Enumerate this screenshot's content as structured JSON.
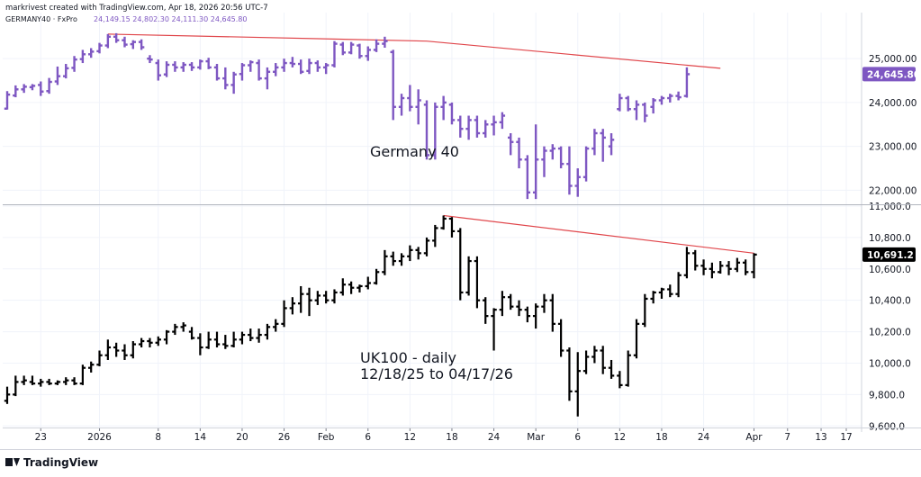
{
  "header": {
    "created_by": "markrivest created with TradingView.com, Apr 18, 2026 20:56 UTC-7",
    "symbol": "GERMANY40 · FxPro",
    "ohlc": "24,149.15  24,802.30  24,111.30  24,645.80"
  },
  "footer": {
    "logo_text": "TradingView"
  },
  "colors": {
    "germany": "#7e57c2",
    "uk": "#000000",
    "trendline": "#e0454a",
    "grid": "#f0f3fa",
    "axis_line": "#d1d4dc"
  },
  "chart_data": [
    {
      "type": "ohlc-bar",
      "title": "",
      "annotation": "Germany 40",
      "last_price_label": "24,645.80",
      "y_tick_labels": [
        "25,000.00",
        "24,000.00",
        "23,000.00",
        "22,000.00"
      ],
      "y_ticks": [
        25000,
        24000,
        23000,
        22000
      ],
      "ylim": [
        21700,
        26050
      ],
      "bars": [
        [
          23860,
          24260,
          23840,
          24180
        ],
        [
          24160,
          24390,
          24120,
          24300
        ],
        [
          24300,
          24420,
          24220,
          24360
        ],
        [
          24350,
          24420,
          24280,
          24380
        ],
        [
          24400,
          24480,
          24150,
          24250
        ],
        [
          24260,
          24560,
          24200,
          24470
        ],
        [
          24480,
          24820,
          24400,
          24600
        ],
        [
          24600,
          24880,
          24550,
          24780
        ],
        [
          24790,
          25060,
          24700,
          24980
        ],
        [
          24990,
          25200,
          24900,
          25100
        ],
        [
          25100,
          25240,
          25020,
          25160
        ],
        [
          25170,
          25360,
          25120,
          25300
        ],
        [
          25300,
          25560,
          25240,
          25500
        ],
        [
          25500,
          25580,
          25360,
          25420
        ],
        [
          25420,
          25500,
          25260,
          25320
        ],
        [
          25330,
          25420,
          25220,
          25380
        ],
        [
          25380,
          25440,
          25200,
          25260
        ],
        [
          25000,
          25080,
          24900,
          24980
        ],
        [
          24900,
          24980,
          24500,
          24620
        ],
        [
          24640,
          24940,
          24580,
          24860
        ],
        [
          24860,
          24940,
          24700,
          24800
        ],
        [
          24800,
          24920,
          24700,
          24860
        ],
        [
          24860,
          24920,
          24720,
          24800
        ],
        [
          24800,
          24980,
          24750,
          24940
        ],
        [
          24940,
          25020,
          24760,
          24800
        ],
        [
          24800,
          24880,
          24500,
          24550
        ],
        [
          24550,
          24800,
          24300,
          24400
        ],
        [
          24400,
          24700,
          24200,
          24640
        ],
        [
          24650,
          24900,
          24500,
          24850
        ],
        [
          24850,
          24960,
          24700,
          24920
        ],
        [
          24900,
          24980,
          24500,
          24550
        ],
        [
          24550,
          24800,
          24300,
          24700
        ],
        [
          24700,
          24900,
          24600,
          24800
        ],
        [
          24800,
          25000,
          24700,
          24900
        ],
        [
          24900,
          25040,
          24800,
          24880
        ],
        [
          24880,
          24980,
          24650,
          24700
        ],
        [
          24720,
          25000,
          24650,
          24900
        ],
        [
          24900,
          24960,
          24700,
          24800
        ],
        [
          24800,
          24900,
          24650,
          24850
        ],
        [
          24850,
          25400,
          24800,
          25340
        ],
        [
          25320,
          25380,
          25080,
          25140
        ],
        [
          25140,
          25380,
          25100,
          25320
        ],
        [
          25300,
          25340,
          25000,
          25060
        ],
        [
          25060,
          25280,
          24950,
          25200
        ],
        [
          25200,
          25440,
          25150,
          25340
        ],
        [
          25340,
          25500,
          25250,
          25400
        ],
        [
          25150,
          25200,
          23600,
          23900
        ],
        [
          23900,
          24200,
          23700,
          24100
        ],
        [
          24100,
          24400,
          23800,
          23900
        ],
        [
          23900,
          24300,
          23500,
          24050
        ],
        [
          23950,
          24050,
          22700,
          22800
        ],
        [
          22800,
          24000,
          22700,
          23900
        ],
        [
          23900,
          24150,
          23600,
          24000
        ],
        [
          23950,
          24000,
          23500,
          23600
        ],
        [
          23600,
          23700,
          23200,
          23400
        ],
        [
          23400,
          23700,
          23150,
          23600
        ],
        [
          23600,
          23700,
          23200,
          23300
        ],
        [
          23300,
          23600,
          23200,
          23500
        ],
        [
          23500,
          23700,
          23250,
          23550
        ],
        [
          23550,
          23780,
          23400,
          23700
        ],
        [
          23200,
          23300,
          22800,
          23100
        ],
        [
          23100,
          23200,
          22500,
          22700
        ],
        [
          22700,
          22800,
          21800,
          21950
        ],
        [
          21950,
          23500,
          21800,
          22700
        ],
        [
          22700,
          23000,
          22300,
          22900
        ],
        [
          22900,
          23050,
          22700,
          22950
        ],
        [
          22950,
          23000,
          22500,
          22600
        ],
        [
          22600,
          23000,
          21900,
          22100
        ],
        [
          22100,
          22500,
          21850,
          22300
        ],
        [
          22300,
          23000,
          22200,
          22950
        ],
        [
          22950,
          23400,
          22800,
          23300
        ],
        [
          23300,
          23400,
          22650,
          23200
        ],
        [
          23000,
          23300,
          22800,
          23150
        ],
        [
          23850,
          24200,
          23800,
          24100
        ],
        [
          24100,
          24150,
          23800,
          23850
        ],
        [
          23850,
          24050,
          23600,
          23950
        ],
        [
          23950,
          24000,
          23550,
          23700
        ],
        [
          23900,
          24100,
          23750,
          24050
        ],
        [
          24050,
          24150,
          23950,
          24100
        ],
        [
          24100,
          24200,
          24000,
          24150
        ],
        [
          24150,
          24250,
          24050,
          24120
        ],
        [
          24149.15,
          24802.3,
          24111.3,
          24645.8
        ]
      ],
      "trendline": [
        [
          12,
          25560
        ],
        [
          50,
          25400
        ],
        [
          85,
          24780
        ]
      ]
    },
    {
      "type": "ohlc-bar",
      "title": "",
      "annotation_lines": [
        "UK100 - daily",
        "12/18/25 to 04/17/26"
      ],
      "last_price_label": "10,691.2",
      "y_tick_labels": [
        "11,000.0",
        "10,800.0",
        "10,600.0",
        "10,400.0",
        "10,200.0",
        "10,000.0",
        "9,800.0",
        "9,600.0"
      ],
      "y_ticks": [
        11000,
        10800,
        10600,
        10400,
        10200,
        10000,
        9800,
        9600
      ],
      "ylim": [
        9590,
        11000
      ],
      "bars": [
        [
          9760,
          9850,
          9740,
          9800
        ],
        [
          9800,
          9920,
          9790,
          9880
        ],
        [
          9880,
          9920,
          9860,
          9890
        ],
        [
          9880,
          9920,
          9860,
          9870
        ],
        [
          9870,
          9900,
          9850,
          9880
        ],
        [
          9880,
          9900,
          9860,
          9870
        ],
        [
          9870,
          9890,
          9860,
          9880
        ],
        [
          9880,
          9910,
          9860,
          9890
        ],
        [
          9890,
          9910,
          9860,
          9870
        ],
        [
          9870,
          9990,
          9860,
          9970
        ],
        [
          9970,
          10010,
          9940,
          9990
        ],
        [
          9990,
          10080,
          9980,
          10050
        ],
        [
          10050,
          10150,
          10020,
          10100
        ],
        [
          10100,
          10130,
          10040,
          10080
        ],
        [
          10080,
          10120,
          10020,
          10050
        ],
        [
          10050,
          10140,
          10030,
          10120
        ],
        [
          10120,
          10160,
          10100,
          10140
        ],
        [
          10140,
          10160,
          10100,
          10130
        ],
        [
          10130,
          10170,
          10110,
          10150
        ],
        [
          10150,
          10210,
          10120,
          10200
        ],
        [
          10200,
          10250,
          10180,
          10230
        ],
        [
          10230,
          10260,
          10200,
          10240
        ],
        [
          10200,
          10230,
          10150,
          10160
        ],
        [
          10160,
          10190,
          10050,
          10100
        ],
        [
          10100,
          10200,
          10090,
          10150
        ],
        [
          10150,
          10200,
          10100,
          10120
        ],
        [
          10120,
          10180,
          10090,
          10110
        ],
        [
          10110,
          10200,
          10100,
          10150
        ],
        [
          10150,
          10200,
          10120,
          10180
        ],
        [
          10180,
          10220,
          10140,
          10160
        ],
        [
          10160,
          10220,
          10130,
          10180
        ],
        [
          10180,
          10250,
          10150,
          10230
        ],
        [
          10230,
          10280,
          10200,
          10250
        ],
        [
          10250,
          10400,
          10230,
          10350
        ],
        [
          10350,
          10420,
          10310,
          10380
        ],
        [
          10380,
          10490,
          10320,
          10440
        ],
        [
          10440,
          10480,
          10300,
          10400
        ],
        [
          10400,
          10460,
          10370,
          10430
        ],
        [
          10430,
          10460,
          10380,
          10400
        ],
        [
          10400,
          10470,
          10380,
          10450
        ],
        [
          10450,
          10540,
          10430,
          10500
        ],
        [
          10500,
          10520,
          10440,
          10480
        ],
        [
          10480,
          10500,
          10450,
          10490
        ],
        [
          10490,
          10550,
          10470,
          10510
        ],
        [
          10510,
          10600,
          10500,
          10580
        ],
        [
          10580,
          10720,
          10560,
          10680
        ],
        [
          10680,
          10710,
          10620,
          10650
        ],
        [
          10650,
          10700,
          10620,
          10680
        ],
        [
          10680,
          10750,
          10650,
          10720
        ],
        [
          10720,
          10740,
          10660,
          10700
        ],
        [
          10700,
          10800,
          10680,
          10780
        ],
        [
          10780,
          10880,
          10740,
          10860
        ],
        [
          10860,
          10940,
          10850,
          10920
        ],
        [
          10920,
          10930,
          10800,
          10840
        ],
        [
          10840,
          10860,
          10400,
          10450
        ],
        [
          10450,
          10680,
          10430,
          10650
        ],
        [
          10650,
          10680,
          10350,
          10400
        ],
        [
          10400,
          10420,
          10250,
          10300
        ],
        [
          10300,
          10350,
          10080,
          10340
        ],
        [
          10340,
          10460,
          10300,
          10420
        ],
        [
          10420,
          10440,
          10340,
          10360
        ],
        [
          10360,
          10400,
          10300,
          10340
        ],
        [
          10340,
          10360,
          10260,
          10300
        ],
        [
          10300,
          10380,
          10220,
          10360
        ],
        [
          10360,
          10440,
          10320,
          10400
        ],
        [
          10400,
          10440,
          10200,
          10250
        ],
        [
          10250,
          10280,
          10040,
          10080
        ],
        [
          10080,
          10100,
          9760,
          9820
        ],
        [
          9820,
          10070,
          9660,
          9950
        ],
        [
          9950,
          10080,
          9930,
          10040
        ],
        [
          10040,
          10110,
          10000,
          10080
        ],
        [
          10080,
          10110,
          9930,
          9970
        ],
        [
          9970,
          10020,
          9900,
          9920
        ],
        [
          9920,
          9950,
          9840,
          9860
        ],
        [
          9860,
          10080,
          9850,
          10050
        ],
        [
          10050,
          10280,
          10030,
          10250
        ],
        [
          10250,
          10440,
          10230,
          10410
        ],
        [
          10410,
          10460,
          10380,
          10450
        ],
        [
          10450,
          10480,
          10410,
          10470
        ],
        [
          10470,
          10500,
          10420,
          10440
        ],
        [
          10440,
          10580,
          10420,
          10560
        ],
        [
          10560,
          10740,
          10540,
          10700
        ],
        [
          10700,
          10720,
          10590,
          10620
        ],
        [
          10620,
          10660,
          10560,
          10600
        ],
        [
          10600,
          10640,
          10540,
          10580
        ],
        [
          10580,
          10650,
          10570,
          10620
        ],
        [
          10620,
          10650,
          10560,
          10600
        ],
        [
          10600,
          10670,
          10580,
          10640
        ],
        [
          10640,
          10660,
          10560,
          10580
        ],
        [
          10580,
          10700,
          10540,
          10691.2
        ]
      ],
      "trendline": [
        [
          52,
          10940
        ],
        [
          89,
          10700
        ]
      ]
    }
  ],
  "x_axis": {
    "ticks": [
      {
        "label": "23",
        "bar": 4
      },
      {
        "label": "2026",
        "bar": 11
      },
      {
        "label": "8",
        "bar": 18
      },
      {
        "label": "14",
        "bar": 23
      },
      {
        "label": "20",
        "bar": 28
      },
      {
        "label": "26",
        "bar": 33
      },
      {
        "label": "Feb",
        "bar": 38
      },
      {
        "label": "6",
        "bar": 43
      },
      {
        "label": "12",
        "bar": 48
      },
      {
        "label": "18",
        "bar": 53
      },
      {
        "label": "24",
        "bar": 58
      },
      {
        "label": "Mar",
        "bar": 63
      },
      {
        "label": "6",
        "bar": 68
      },
      {
        "label": "12",
        "bar": 73
      },
      {
        "label": "18",
        "bar": 78
      },
      {
        "label": "24",
        "bar": 83
      },
      {
        "label": "Apr",
        "bar": 89
      },
      {
        "label": "7",
        "bar": 93
      },
      {
        "label": "13",
        "bar": 97
      },
      {
        "label": "17",
        "bar": 100
      }
    ]
  }
}
